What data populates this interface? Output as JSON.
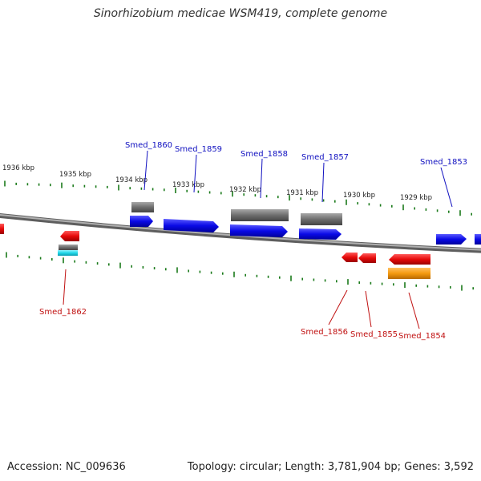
{
  "title": "Sinorhizobium medicae WSM419, complete genome",
  "footer": {
    "accession": "Accession: NC_009636",
    "summary": "Topology: circular; Length: 3,781,904 bp; Genes: 3,592"
  },
  "colors": {
    "backbone": "#8a8a8a",
    "tick": "#1a7a1a",
    "forward_label": "#1010c0",
    "reverse_label": "#c01010",
    "forward_gene": "#0a0ae6",
    "reverse_gene": "#e60a0a",
    "gray_feature": "#6e6e6e",
    "orange_feature": "#f59a10",
    "cyan_feature": "#20d8e8"
  },
  "scale": {
    "unit": "kbp",
    "labels": [
      "1936 kbp",
      "1935 kbp",
      "1934 kbp",
      "1933 kbp",
      "1932 kbp",
      "1931 kbp",
      "1930 kbp",
      "1929 kbp"
    ]
  },
  "labels": {
    "forward": [
      "Smed_1860",
      "Smed_1859",
      "Smed_1858",
      "Smed_1857",
      "Smed_1853"
    ],
    "reverse": [
      "Smed_1862",
      "Smed_1856",
      "Smed_1855",
      "Smed_1854"
    ]
  }
}
